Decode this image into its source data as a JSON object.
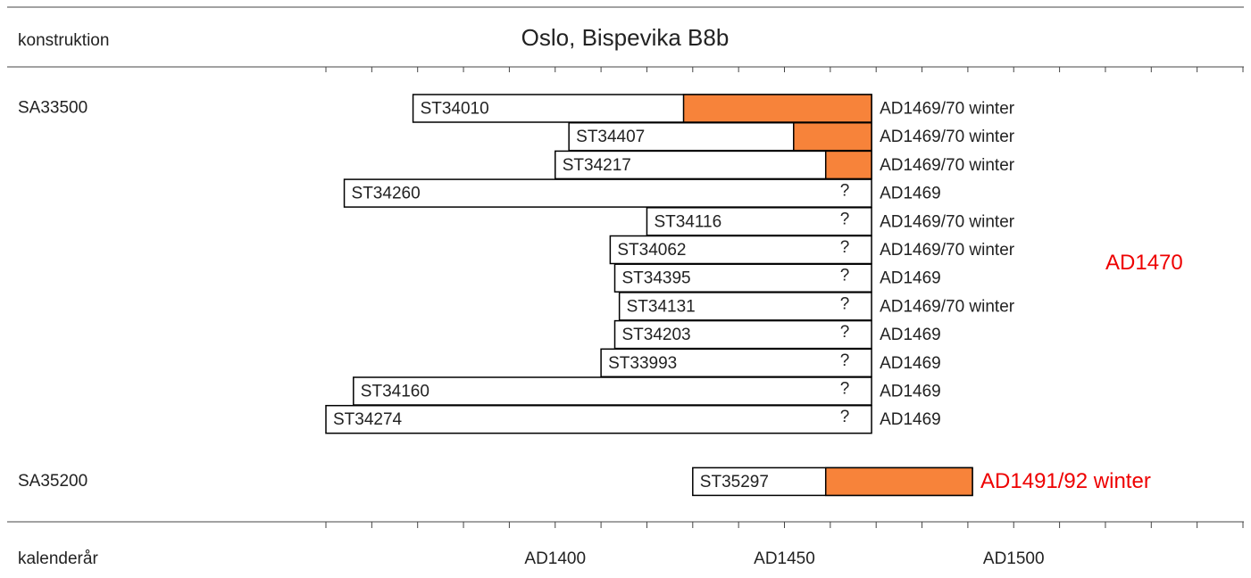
{
  "chart_data": {
    "type": "dendro",
    "title": "Oslo, Bispevika B8b",
    "y_label": "konstruktion",
    "x_label": "kalenderår",
    "xlim": [
      1350,
      1550
    ],
    "xticks": [
      {
        "value": 1400,
        "label": "AD1400"
      },
      {
        "value": 1450,
        "label": "AD1450"
      },
      {
        "value": 1500,
        "label": "AD1500"
      }
    ],
    "xminor": [
      1350,
      1360,
      1370,
      1380,
      1390,
      1400,
      1410,
      1420,
      1430,
      1440,
      1450,
      1460,
      1470,
      1480,
      1490,
      1500,
      1510,
      1520,
      1530,
      1540,
      1550
    ],
    "sapwood_color": "#f7833a",
    "date_color": "#ee0000",
    "groups": [
      {
        "name": "SA33500",
        "date": "AD1470",
        "samples": [
          {
            "name": "ST34010",
            "start": 1369,
            "sapwood": 1428,
            "end": 1469,
            "date": "AD1469/70 winter"
          },
          {
            "name": "ST34407",
            "start": 1403,
            "sapwood": 1452,
            "end": 1469,
            "date": "AD1469/70 winter"
          },
          {
            "name": "ST34217",
            "start": 1400,
            "sapwood": 1459,
            "end": 1469,
            "date": "AD1469/70 winter"
          },
          {
            "name": "ST34260",
            "start": 1354,
            "sapwood": null,
            "end": 1469,
            "mark": "?",
            "date": "AD1469"
          },
          {
            "name": "ST34116",
            "start": 1420,
            "sapwood": null,
            "end": 1469,
            "mark": "?",
            "date": "AD1469/70 winter"
          },
          {
            "name": "ST34062",
            "start": 1412,
            "sapwood": null,
            "end": 1469,
            "mark": "?",
            "date": "AD1469/70 winter"
          },
          {
            "name": "ST34395",
            "start": 1413,
            "sapwood": null,
            "end": 1469,
            "mark": "?",
            "date": "AD1469"
          },
          {
            "name": "ST34131",
            "start": 1414,
            "sapwood": null,
            "end": 1469,
            "mark": "?",
            "date": "AD1469/70 winter"
          },
          {
            "name": "ST34203",
            "start": 1413,
            "sapwood": null,
            "end": 1469,
            "mark": "?",
            "date": "AD1469"
          },
          {
            "name": "ST33993",
            "start": 1410,
            "sapwood": null,
            "end": 1469,
            "mark": "?",
            "date": "AD1469"
          },
          {
            "name": "ST34160",
            "start": 1356,
            "sapwood": null,
            "end": 1469,
            "mark": "?",
            "date": "AD1469"
          },
          {
            "name": "ST34274",
            "start": 1350,
            "sapwood": null,
            "end": 1469,
            "mark": "?",
            "date": "AD1469"
          }
        ]
      },
      {
        "name": "SA35200",
        "date": "AD1491/92 winter",
        "samples": [
          {
            "name": "ST35297",
            "start": 1430,
            "sapwood": 1459,
            "end": 1491
          }
        ]
      }
    ]
  }
}
